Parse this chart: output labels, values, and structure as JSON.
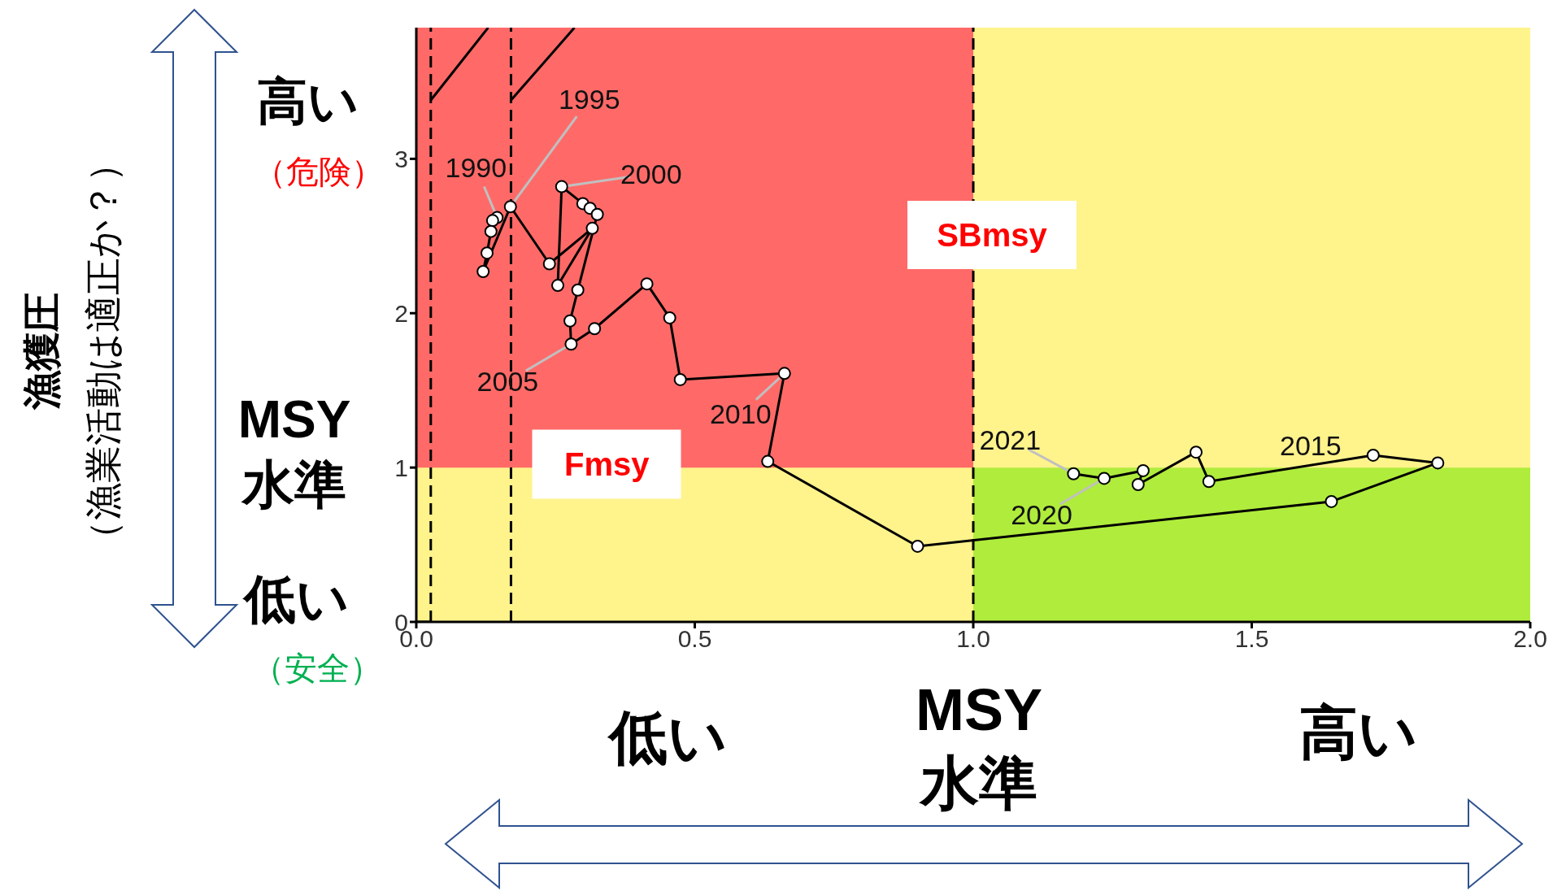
{
  "chart_data": {
    "type": "line",
    "marker": "circle",
    "xlim": [
      0,
      2
    ],
    "xticks": [
      {
        "value": 0,
        "label": "0.0"
      },
      0.5,
      {
        "value": 1,
        "label": "1.0"
      },
      1.5,
      {
        "value": 2,
        "label": "2.0"
      }
    ],
    "ylim": [
      0,
      3.85
    ],
    "yticks": [
      0,
      1,
      2,
      3
    ],
    "series": [
      {
        "color": "#000000",
        "x": [
          0.145,
          0.137,
          0.134,
          0.127,
          0.12,
          0.169,
          0.239,
          0.316,
          0.254,
          0.261,
          0.299,
          0.312,
          0.325,
          0.29,
          0.276,
          0.278,
          0.32,
          0.414,
          0.455,
          0.474,
          0.661,
          0.631,
          0.9,
          1.643,
          1.834,
          1.718,
          1.423,
          1.4,
          1.296,
          1.305,
          1.235,
          1.18
        ],
        "values": [
          2.62,
          2.6,
          2.53,
          2.39,
          2.27,
          2.69,
          2.32,
          2.55,
          2.18,
          2.82,
          2.71,
          2.68,
          2.64,
          2.15,
          1.95,
          1.8,
          1.9,
          2.19,
          1.97,
          1.57,
          1.61,
          1.04,
          0.49,
          0.78,
          1.03,
          1.08,
          0.91,
          1.1,
          0.89,
          0.98,
          0.93,
          0.96
        ]
      },
      {
        "color": "#000000",
        "marker": "none",
        "x": [
          0.026,
          0.129
        ],
        "values": [
          3.38,
          3.85
        ]
      },
      {
        "color": "#000000",
        "marker": "none",
        "x": [
          0.17,
          0.284
        ],
        "values": [
          3.38,
          3.85
        ]
      },
      {
        "color": "#000000",
        "marker": "none",
        "x": [
          0,
          0.026
        ],
        "values": [
          0,
          0
        ]
      }
    ],
    "bands": [
      {
        "axis": "y",
        "from": 0,
        "to": 3.85,
        "color": "#fff38c"
      },
      {
        "axis": "x",
        "from": 0,
        "to": 1,
        "color": "#ff6a68"
      },
      {
        "axis": "y",
        "from": 0,
        "to": 1,
        "color": "#b0ec3c"
      }
    ],
    "ref_lines": [
      {
        "axis": "x",
        "value": 0.026,
        "color": "#000000",
        "line_style": "dashed"
      },
      {
        "axis": "x",
        "value": 0.17,
        "color": "#000000",
        "line_style": "dashed"
      },
      {
        "axis": "x",
        "value": 1,
        "color": "#000000",
        "line_style": "dashed"
      }
    ],
    "annotations": [
      "高い",
      "（危険）",
      "MSY\n水準",
      "低い",
      "（安全）",
      "低い",
      "MSY\n水準",
      "高い",
      "漁獲圧",
      "（漁業活動は適正か？）",
      "SBmsy",
      {
        "text": "1990",
        "x": 0.145,
        "y": 2.62
      },
      {
        "text": "1995",
        "x": 0.169,
        "y": 2.69
      },
      {
        "text": "2000",
        "x": 0.261,
        "y": 2.82
      },
      {
        "text": "2005",
        "x": 0.278,
        "y": 1.8
      },
      {
        "text": "2010",
        "x": 0.661,
        "y": 1.61
      },
      {
        "text": "2015",
        "x": 1.718,
        "y": 1.08
      },
      {
        "text": "2020",
        "x": 1.235,
        "y": 0.93
      },
      {
        "text": "2021",
        "x": 1.18,
        "y": 0.96
      },
      {
        "text": "Fmsy",
        "x": 0.342,
        "y": 1.02
      }
    ]
  }
}
